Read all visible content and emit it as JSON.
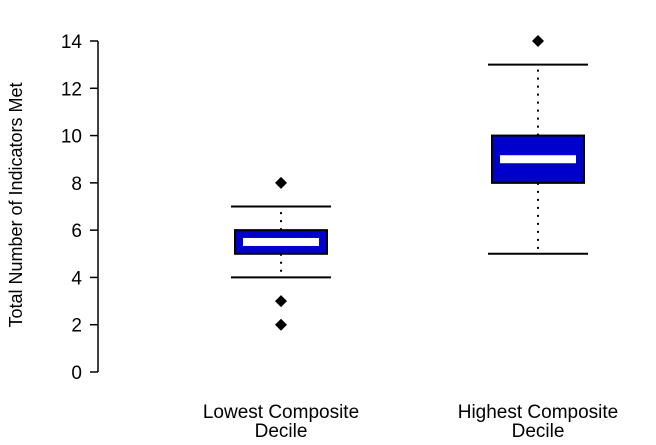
{
  "chart_data": {
    "type": "box",
    "title": "",
    "xlabel": "",
    "ylabel": "Total Number of Indicators Met",
    "ylim": [
      0,
      14
    ],
    "yticks": [
      "0",
      "2",
      "4",
      "6",
      "8",
      "10",
      "12",
      "14"
    ],
    "grid": false,
    "legend": "none",
    "colors": {
      "box": "#0000cc",
      "median": "#ffffff",
      "outline": "#000000"
    },
    "groups": [
      {
        "label_lines": [
          "Lowest Composite",
          "Decile"
        ],
        "whisker_low": 4,
        "q1": 5,
        "median": 5.5,
        "q3": 6,
        "whisker_high": 7,
        "outliers": [
          8,
          3,
          2
        ]
      },
      {
        "label_lines": [
          "Highest Composite",
          "Decile"
        ],
        "whisker_low": 5,
        "q1": 8,
        "median": 9,
        "q3": 10,
        "whisker_high": 13,
        "outliers": [
          14
        ]
      }
    ]
  }
}
